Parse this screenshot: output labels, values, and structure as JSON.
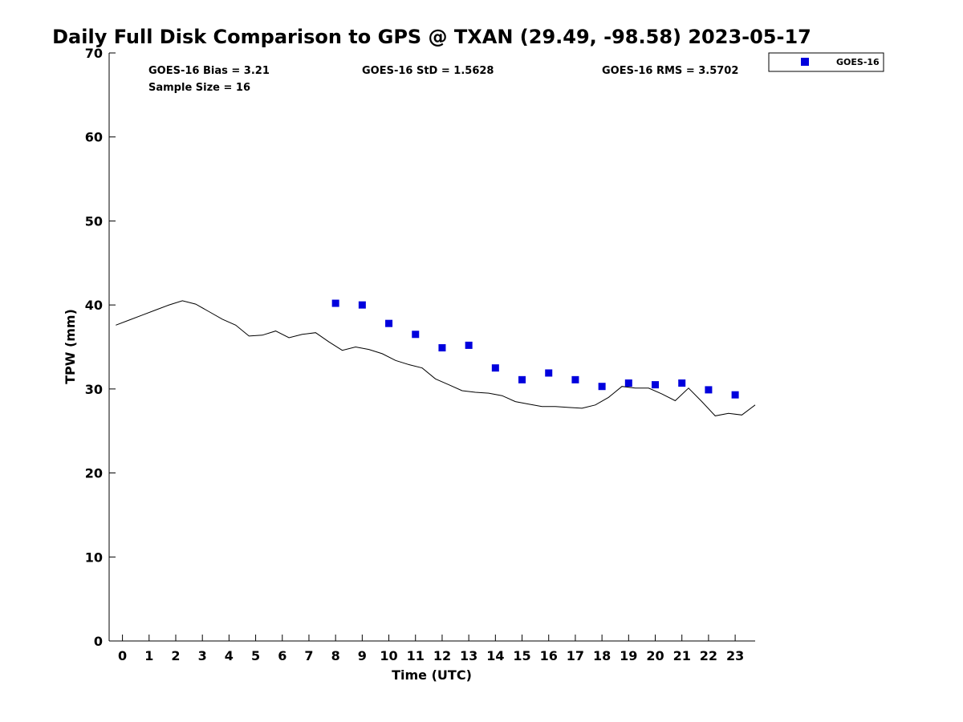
{
  "chart_data": {
    "type": "scatter",
    "title": "Daily Full Disk Comparison to GPS @ TXAN (29.49, -98.58) 2023-05-17",
    "xlabel": "Time (UTC)",
    "ylabel": "TPW (mm)",
    "xlim": [
      -0.5,
      23.75
    ],
    "ylim": [
      0,
      70
    ],
    "x_ticks": [
      0,
      1,
      2,
      3,
      4,
      5,
      6,
      7,
      8,
      9,
      10,
      11,
      12,
      13,
      14,
      15,
      16,
      17,
      18,
      19,
      20,
      21,
      22,
      23
    ],
    "y_ticks": [
      0,
      10,
      20,
      30,
      40,
      50,
      60,
      70
    ],
    "grid": false,
    "legend_position": "outside-top-right",
    "stats": {
      "bias": "GOES-16 Bias = 3.21",
      "std": "GOES-16 StD = 1.5628",
      "rms": "GOES-16 RMS = 3.5702",
      "sample_size": "Sample Size = 16"
    },
    "series": [
      {
        "name": "GOES-16",
        "kind": "scatter",
        "color": "#0000dd",
        "marker": "square",
        "x": [
          8,
          9,
          10,
          11,
          12,
          13,
          14,
          15,
          16,
          17,
          18,
          19,
          20,
          21,
          22,
          23
        ],
        "y": [
          40.2,
          40.0,
          37.8,
          36.5,
          34.9,
          35.2,
          32.5,
          31.1,
          31.9,
          31.1,
          30.3,
          30.7,
          30.5,
          30.7,
          29.9,
          29.3
        ]
      },
      {
        "kind": "line",
        "color": "#000000",
        "x": [
          -0.25,
          0.25,
          0.75,
          1.25,
          1.75,
          2.25,
          2.75,
          3.25,
          3.75,
          4.25,
          4.75,
          5.25,
          5.75,
          6.25,
          6.75,
          7.25,
          7.75,
          8.25,
          8.75,
          9.25,
          9.75,
          10.25,
          10.75,
          11.25,
          11.75,
          12.25,
          12.75,
          13.25,
          13.75,
          14.25,
          14.75,
          15.25,
          15.75,
          16.25,
          16.75,
          17.25,
          17.75,
          18.25,
          18.75,
          19.25,
          19.75,
          20.25,
          20.75,
          21.25,
          21.75,
          22.25,
          22.75,
          23.25,
          23.75
        ],
        "y": [
          37.6,
          38.2,
          38.8,
          39.4,
          40.0,
          40.5,
          40.1,
          39.2,
          38.3,
          37.6,
          36.3,
          36.4,
          36.9,
          36.1,
          36.5,
          36.7,
          35.6,
          34.6,
          35.0,
          34.7,
          34.2,
          33.4,
          32.9,
          32.5,
          31.2,
          30.5,
          29.8,
          29.6,
          29.5,
          29.2,
          28.5,
          28.2,
          27.9,
          27.9,
          27.8,
          27.7,
          28.1,
          29.0,
          30.3,
          30.1,
          30.1,
          29.4,
          28.6,
          30.1,
          28.5,
          26.8,
          27.1,
          26.9,
          28.1
        ]
      }
    ]
  }
}
